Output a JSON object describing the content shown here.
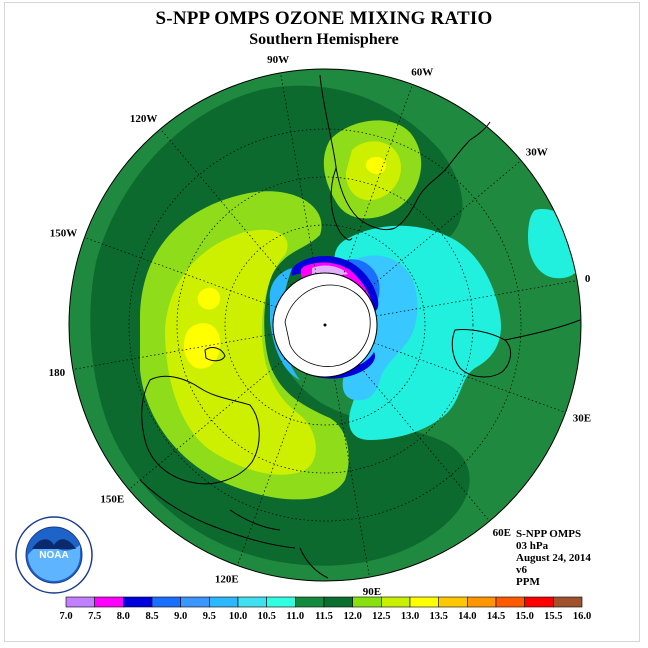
{
  "title": "S-NPP OMPS OZONE MIXING RATIO",
  "subtitle": "Southern Hemisphere",
  "longitude_labels": [
    "90W",
    "60W",
    "30W",
    "0",
    "30E",
    "60E",
    "90E",
    "120E",
    "150E",
    "180",
    "150W",
    "120W"
  ],
  "info": {
    "instrument": "S-NPP OMPS",
    "level": "03 hPa",
    "date": "August 24, 2014",
    "version": "v6",
    "units": "PPM"
  },
  "legend": {
    "ticks": [
      "7.0",
      "7.5",
      "8.0",
      "8.5",
      "9.0",
      "9.5",
      "10.0",
      "10.5",
      "11.0",
      "11.5",
      "12.0",
      "12.5",
      "13.0",
      "13.5",
      "14.0",
      "14.5",
      "15.0",
      "15.5",
      "16.0"
    ],
    "colors": [
      "#c080ff",
      "#e0b0ff",
      "#ff00ff",
      "#0000dd",
      "#1a6fff",
      "#3c96ff",
      "#2cb8ff",
      "#40e0f0",
      "#30ffe0",
      "#138a3e",
      "#0a6e2e",
      "#88e010",
      "#c8f000",
      "#ffff00",
      "#ffc800",
      "#ff9600",
      "#ff5a00",
      "#ff0000",
      "#a0522d"
    ]
  },
  "logo": {
    "text": "NOAA",
    "ring_text": "NATIONAL OCEANIC AND ATMOSPHERIC ADMINISTRATION · U.S. DEPARTMENT OF COMMERCE"
  },
  "colors": {
    "ocean_base": "#1f8a3f",
    "dark_green": "#0d6a2e",
    "light_green": "#8fdc1a",
    "yellow_green": "#ccf000",
    "yellow": "#ffff00",
    "cyan": "#22f0de",
    "pole_cap": "#ffffff"
  }
}
